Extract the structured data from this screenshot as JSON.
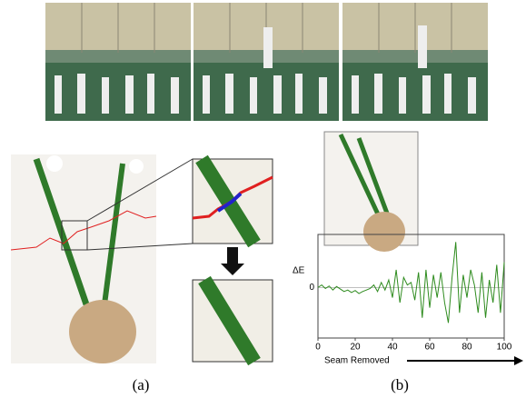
{
  "figure": {
    "panel_a_label": "(a)",
    "panel_b_label": "(b)"
  },
  "chart_data": {
    "type": "line",
    "ylabel": "ΔE",
    "xlabel": "Seam Removed",
    "x": [
      0,
      2,
      4,
      6,
      8,
      10,
      12,
      14,
      16,
      18,
      20,
      22,
      24,
      26,
      28,
      30,
      32,
      34,
      36,
      38,
      40,
      42,
      44,
      46,
      48,
      50,
      52,
      54,
      56,
      58,
      60,
      62,
      64,
      66,
      68,
      70,
      72,
      74,
      76,
      78,
      80,
      82,
      84,
      86,
      88,
      90,
      92,
      94,
      96,
      98,
      100
    ],
    "series": [
      {
        "color": "#2e8b1e",
        "values": [
          0.0,
          0.05,
          -0.02,
          0.03,
          -0.05,
          0.02,
          -0.03,
          -0.08,
          -0.05,
          -0.1,
          -0.06,
          -0.12,
          -0.08,
          -0.05,
          -0.02,
          0.05,
          -0.08,
          0.1,
          -0.05,
          0.15,
          -0.2,
          0.35,
          -0.3,
          0.2,
          0.05,
          0.1,
          -0.25,
          0.3,
          -0.6,
          0.35,
          -0.4,
          0.25,
          -0.2,
          0.3,
          -0.3,
          -0.7,
          0.2,
          0.9,
          -0.5,
          0.25,
          -0.2,
          0.35,
          0.05,
          -0.5,
          0.3,
          -0.6,
          0.15,
          -0.3,
          0.45,
          -0.5,
          0.5
        ]
      }
    ],
    "xlim": [
      0,
      100
    ],
    "xticks": [
      0,
      20,
      40,
      60,
      80,
      100
    ],
    "ylim": [
      -1,
      1.05
    ],
    "yticks": [
      0
    ],
    "zero_line": true
  }
}
